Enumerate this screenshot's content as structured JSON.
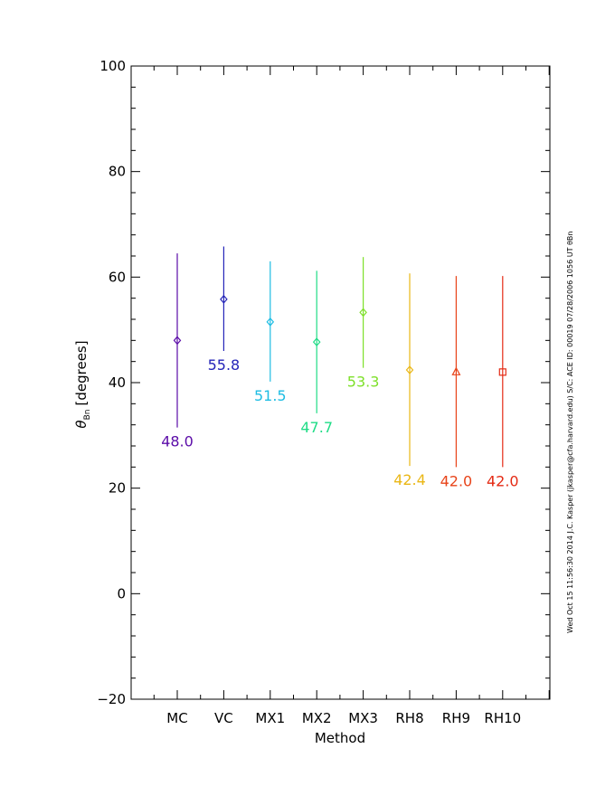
{
  "chart_data": {
    "type": "scatter",
    "subtype": "error-bar",
    "xlabel": "Method",
    "ylabel": "θBn [degrees]",
    "ylabel_main": "θ",
    "ylabel_sub": "Bn",
    "ylabel_unit": "[degrees]",
    "ylim": [
      -20,
      100
    ],
    "yticks": [
      -20,
      0,
      20,
      40,
      60,
      80,
      100
    ],
    "categories": [
      "MC",
      "VC",
      "MX1",
      "MX2",
      "MX3",
      "RH8",
      "RH9",
      "RH10"
    ],
    "points": [
      {
        "method": "MC",
        "value": 48.0,
        "low": 31.5,
        "high": 64.5,
        "label": "48.0",
        "marker": "diamond",
        "color": "#5b0ca8"
      },
      {
        "method": "VC",
        "value": 55.8,
        "low": 46.0,
        "high": 65.8,
        "label": "55.8",
        "marker": "diamond",
        "color": "#2424b8"
      },
      {
        "method": "MX1",
        "value": 51.5,
        "low": 40.2,
        "high": 63.0,
        "label": "51.5",
        "marker": "diamond",
        "color": "#1ebde3"
      },
      {
        "method": "MX2",
        "value": 47.7,
        "low": 34.2,
        "high": 61.2,
        "label": "47.7",
        "marker": "diamond",
        "color": "#1fdc86"
      },
      {
        "method": "MX3",
        "value": 53.3,
        "low": 42.8,
        "high": 63.8,
        "label": "53.3",
        "marker": "diamond",
        "color": "#7ee02a"
      },
      {
        "method": "RH8",
        "value": 42.4,
        "low": 24.2,
        "high": 60.7,
        "label": "42.4",
        "marker": "diamond",
        "color": "#eab716"
      },
      {
        "method": "RH9",
        "value": 42.0,
        "low": 24.0,
        "high": 60.2,
        "label": "42.0",
        "marker": "triangle",
        "color": "#e8441a"
      },
      {
        "method": "RH10",
        "value": 42.0,
        "low": 24.0,
        "high": 60.2,
        "label": "42.0",
        "marker": "square",
        "color": "#e42a14"
      }
    ],
    "footer_text": "Wed Oct 15 11:56:30 2014   J.C. Kasper (jkasper@cfa.harvard.edu)   S/C: ACE ID: 00019 07/28/2006  1056 UT θBn"
  }
}
